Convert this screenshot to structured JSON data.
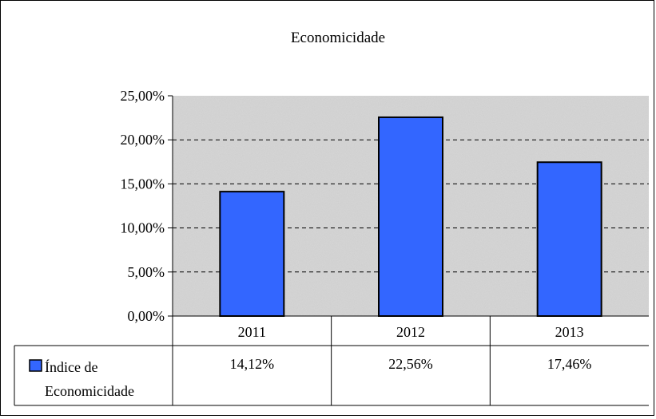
{
  "chart_data": {
    "type": "bar",
    "title": "Economicidade",
    "categories": [
      "2011",
      "2012",
      "2013"
    ],
    "series": [
      {
        "name": "Índice de Economicidade",
        "name_lines": [
          "Índice de",
          "Economicidade"
        ],
        "values": [
          14.12,
          22.56,
          17.46
        ],
        "value_labels": [
          "14,12%",
          "22,56%",
          "17,46%"
        ],
        "color": "#3366ff"
      }
    ],
    "ylim": [
      0,
      25
    ],
    "yticks": [
      0,
      5,
      10,
      15,
      20,
      25
    ],
    "ytick_labels": [
      "0,00%",
      "5,00%",
      "10,00%",
      "15,00%",
      "20,00%",
      "25,00%"
    ],
    "grid": "dashed horizontal",
    "legend": "data table, bottom-left",
    "plot_background": "#d4d4d4",
    "xlabel": "",
    "ylabel": ""
  }
}
